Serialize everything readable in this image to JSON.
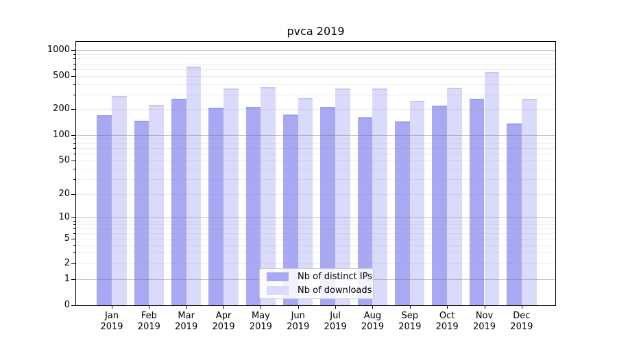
{
  "chart_data": {
    "type": "bar",
    "title": "pvca 2019",
    "categories": [
      "Jan 2019",
      "Feb 2019",
      "Mar 2019",
      "Apr 2019",
      "May 2019",
      "Jun 2019",
      "Jul 2019",
      "Aug 2019",
      "Sep 2019",
      "Oct 2019",
      "Nov 2019",
      "Dec 2019"
    ],
    "series": [
      {
        "name": "Nb of distinct IPs",
        "color": "#a9a9f3",
        "values": [
          170,
          148,
          268,
          208,
          214,
          173,
          213,
          160,
          144,
          222,
          268,
          136
        ]
      },
      {
        "name": "Nb of downloads",
        "color": "#dadafa",
        "values": [
          290,
          226,
          640,
          357,
          366,
          271,
          357,
          357,
          250,
          360,
          552,
          268
        ]
      }
    ],
    "yscale": "symlog",
    "yticks": [
      0,
      1,
      2,
      5,
      10,
      20,
      50,
      100,
      200,
      500,
      1000
    ],
    "ylim": [
      0,
      1280
    ],
    "grid": true,
    "legend_position": "lower center"
  }
}
